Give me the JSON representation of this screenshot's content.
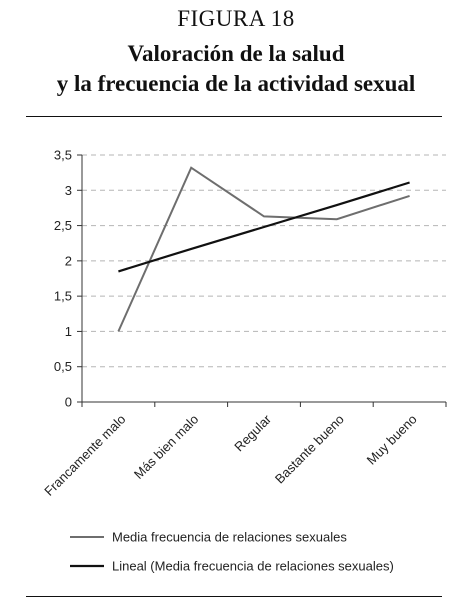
{
  "figure_label": "FIGURA 18",
  "title_lines": [
    "Valoración de la salud",
    "y la frecuencia de la actividad sexual"
  ],
  "chart_data": {
    "type": "line",
    "categories": [
      "Francamente malo",
      "Más bien malo",
      "Regular",
      "Bastante bueno",
      "Muy bueno"
    ],
    "series": [
      {
        "name": "Media frecuencia de relaciones sexuales",
        "values": [
          1.0,
          3.32,
          2.63,
          2.59,
          2.92
        ],
        "color": "#6e6e6e"
      },
      {
        "name": "Lineal (Media frecuencia de relaciones sexuales)",
        "values": [
          1.85,
          2.17,
          2.48,
          2.79,
          3.11
        ],
        "color": "#111111"
      }
    ],
    "yticks": [
      "0",
      "0,5",
      "1",
      "1,5",
      "2",
      "2,5",
      "3",
      "3,5"
    ],
    "ylim": [
      0,
      3.5
    ],
    "grid": true,
    "legend_position": "bottom"
  }
}
